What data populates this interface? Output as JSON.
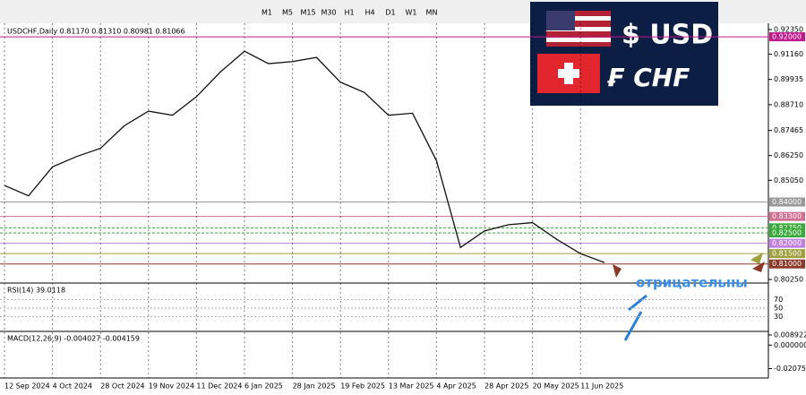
{
  "toolbar": {
    "timeframes": [
      "M1",
      "M5",
      "M15",
      "M30",
      "H1",
      "H4",
      "D1",
      "W1",
      "MN"
    ]
  },
  "chart_data": {
    "type": "line",
    "header": "USDCHF,Daily  0.81170 0.81310 0.80981 0.81066",
    "categories": [
      "12 Sep 2024",
      null,
      "4 Oct 2024",
      null,
      "28 Oct 2024",
      null,
      "19 Nov 2024",
      null,
      "11 Dec 2024",
      null,
      "6 Jan 2025",
      null,
      "28 Jan 2025",
      null,
      "19 Feb 2025",
      null,
      "13 Mar 2025",
      null,
      "4 Apr 2025",
      null,
      "28 Apr 2025",
      null,
      "20 May 2025",
      null,
      "11 Jun 2025",
      null
    ],
    "values": [
      0.848,
      0.843,
      0.857,
      0.862,
      0.866,
      0.877,
      0.884,
      0.882,
      0.891,
      0.903,
      0.913,
      0.907,
      0.908,
      0.91,
      0.898,
      0.893,
      0.882,
      0.883,
      0.86,
      0.818,
      0.826,
      0.829,
      0.83,
      0.822,
      0.815,
      0.8107
    ],
    "color": "#111111",
    "ylim": [
      0.8025,
      0.9235
    ],
    "yticks": [
      {
        "value": 0.9235,
        "label": "0.92350"
      },
      {
        "value": 0.9116,
        "label": "0.91160"
      },
      {
        "value": 0.89935,
        "label": "0.89935"
      },
      {
        "value": 0.8871,
        "label": "0.88710"
      },
      {
        "value": 0.87465,
        "label": "0.87465"
      },
      {
        "value": 0.8625,
        "label": "0.86250"
      },
      {
        "value": 0.8505,
        "label": "0.85050"
      },
      {
        "value": 0.8025,
        "label": "0.80250"
      }
    ],
    "levels": [
      {
        "value": 0.92,
        "label": "0.92000",
        "color": "#c0188c"
      },
      {
        "value": 0.84,
        "label": "0.84000",
        "color": "#999999"
      },
      {
        "value": 0.833,
        "label": "0.83300",
        "color": "#d07090"
      },
      {
        "value": 0.8275,
        "label": "0.82750",
        "color": "#3aa83a"
      },
      {
        "value": 0.825,
        "label": "0.82500",
        "color": "#3aa83a"
      },
      {
        "value": 0.82,
        "label": "0.82000",
        "color": "#c080e0"
      },
      {
        "value": 0.815,
        "label": "0.81500",
        "color": "#a0a040"
      },
      {
        "value": 0.81,
        "label": "0.81000",
        "color": "#8b3a2a"
      }
    ],
    "rsi": {
      "label": "RSI(14) 39.0118",
      "ylim": [
        0,
        100
      ],
      "yticks": [
        70,
        50,
        30
      ]
    },
    "macd": {
      "label": "MACD(12,26,9) -0.004027 -0.004159",
      "ylim": [
        -0.0275,
        0.0121
      ],
      "yticks": [
        {
          "value": 0.008922,
          "label": "0.008922"
        },
        {
          "value": 0,
          "label": "0.000000"
        },
        {
          "value": -0.020757,
          "label": "-0.020757"
        }
      ]
    }
  },
  "banner": {
    "usd": "$ USD",
    "chf": "₣ CHF"
  },
  "annotation": "отрицательны"
}
